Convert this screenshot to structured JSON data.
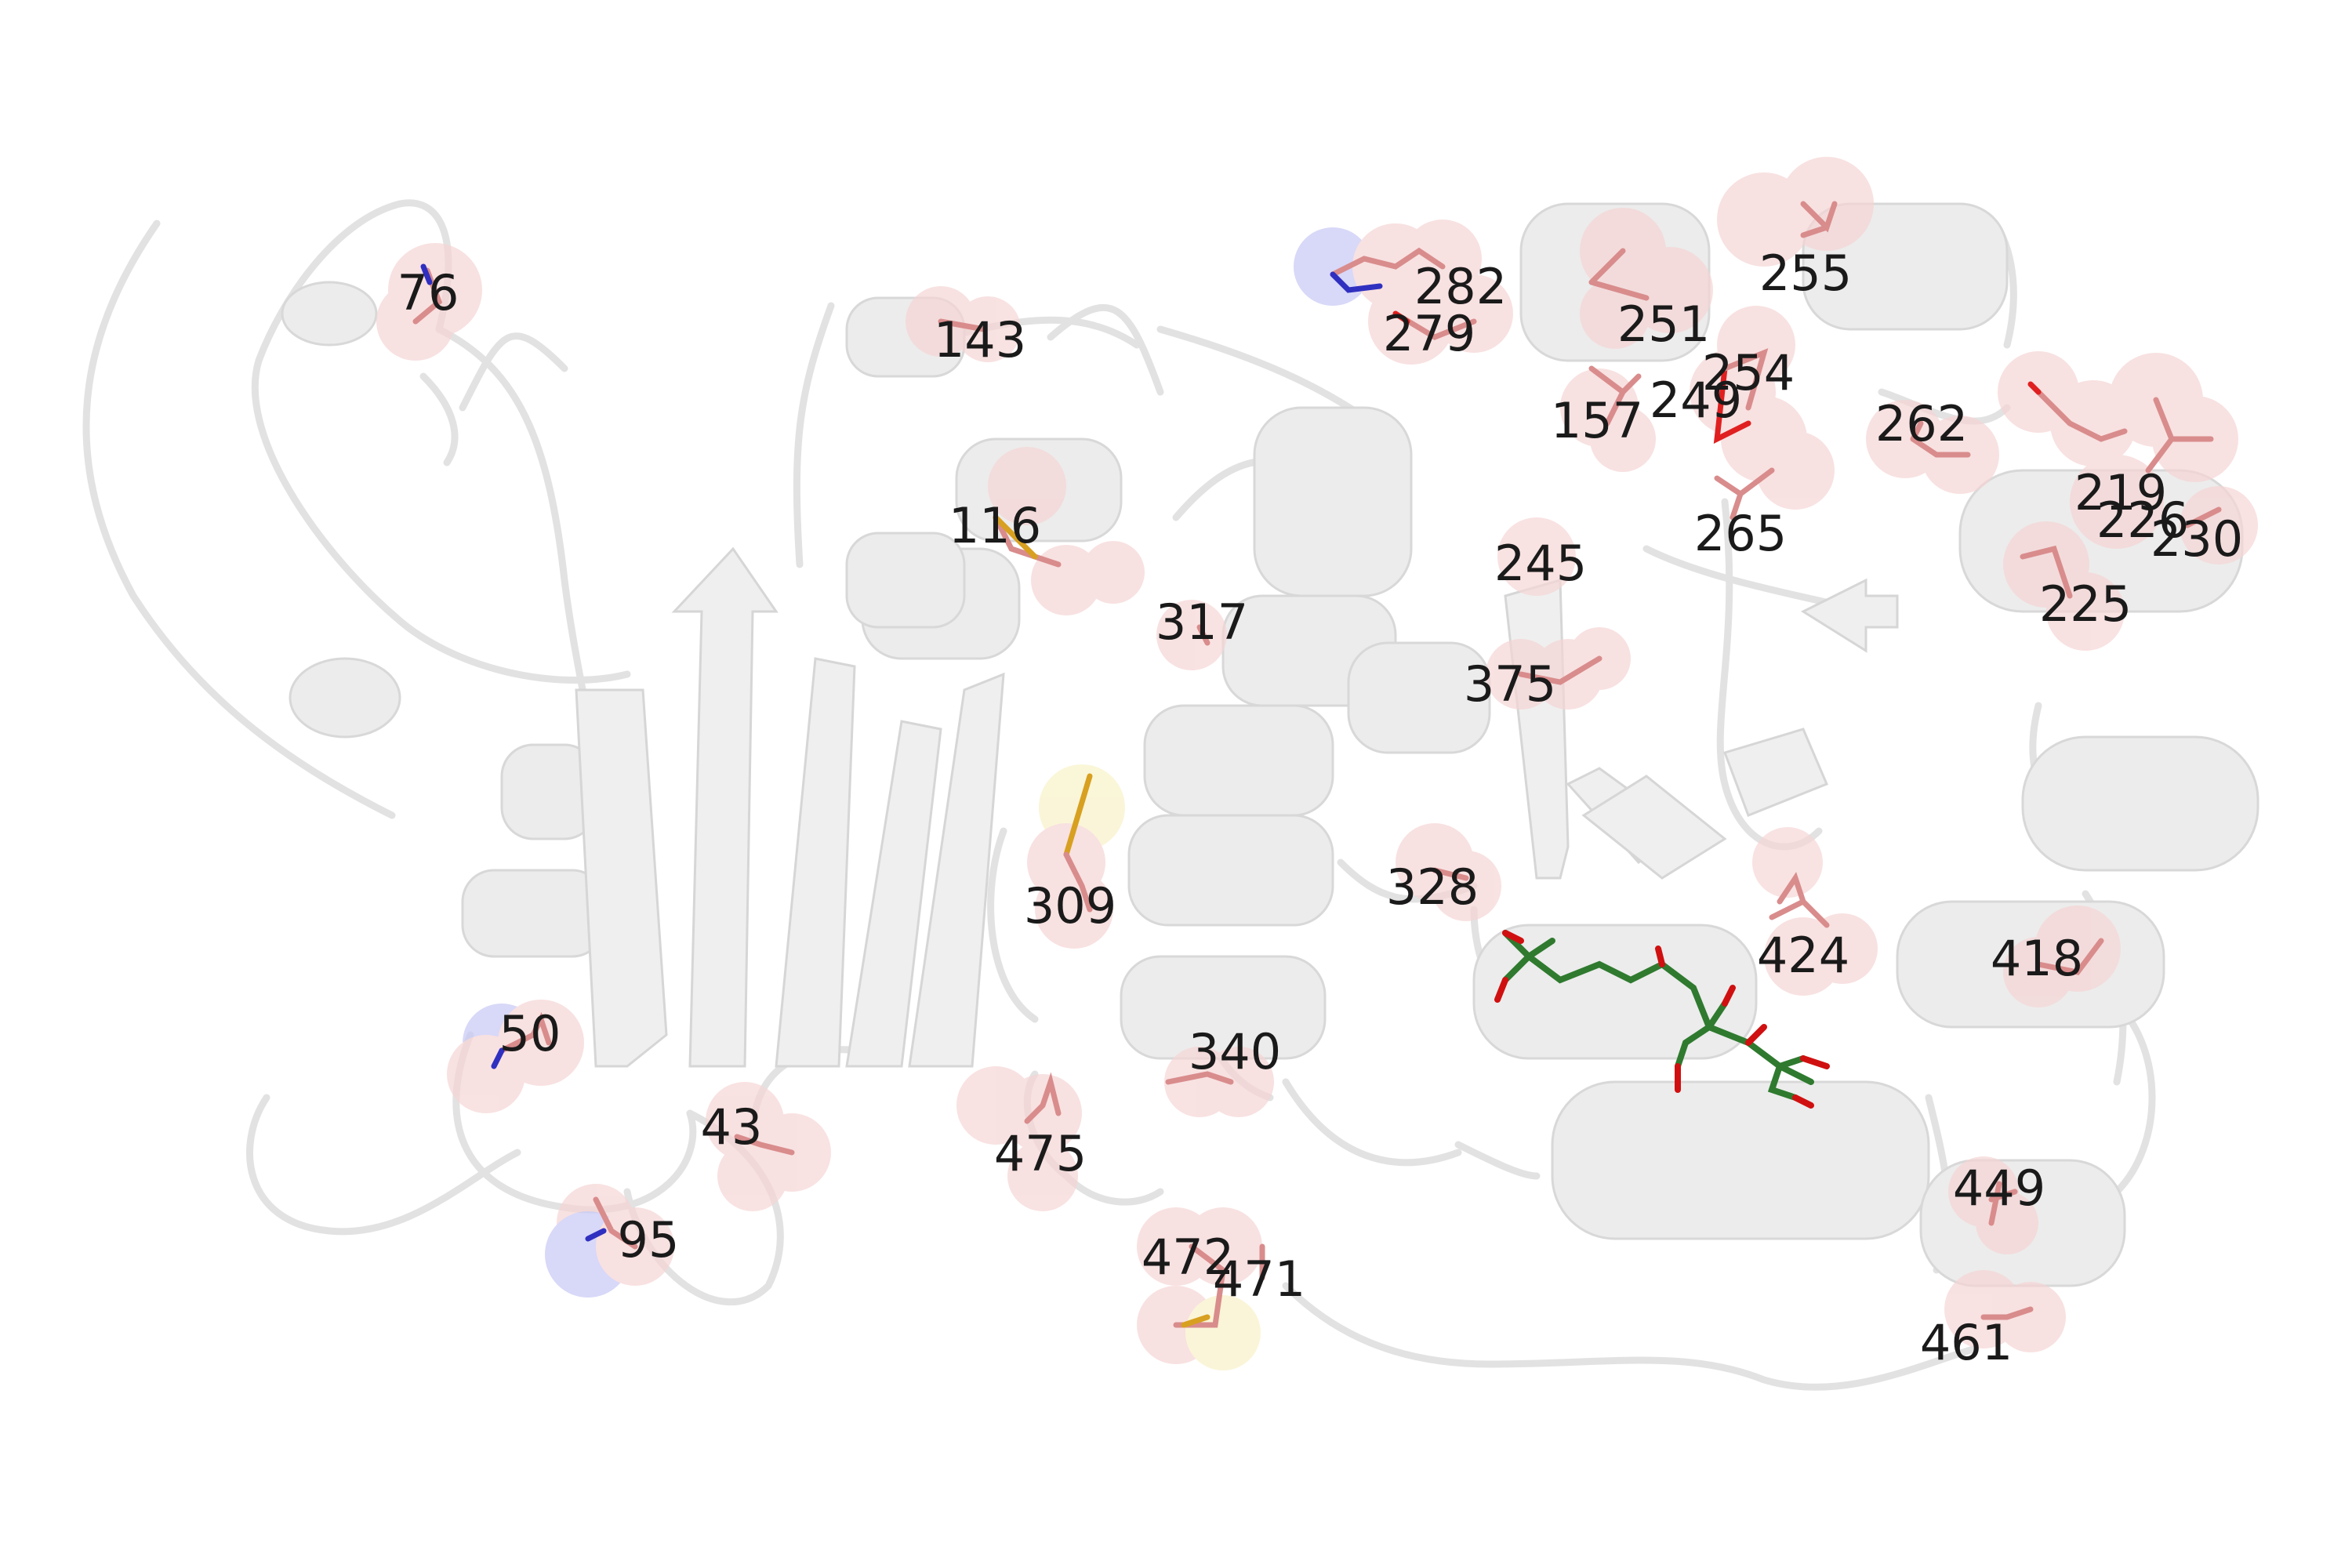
{
  "residue_labels": [
    {
      "text": "76"
    },
    {
      "text": "143"
    },
    {
      "text": "282"
    },
    {
      "text": "279"
    },
    {
      "text": "251"
    },
    {
      "text": "255"
    },
    {
      "text": "254"
    },
    {
      "text": "249"
    },
    {
      "text": "157"
    },
    {
      "text": "262"
    },
    {
      "text": "265"
    },
    {
      "text": "219"
    },
    {
      "text": "226"
    },
    {
      "text": "230"
    },
    {
      "text": "225"
    },
    {
      "text": "116"
    },
    {
      "text": "245"
    },
    {
      "text": "317"
    },
    {
      "text": "375"
    },
    {
      "text": "309"
    },
    {
      "text": "328"
    },
    {
      "text": "424"
    },
    {
      "text": "418"
    },
    {
      "text": "50"
    },
    {
      "text": "340"
    },
    {
      "text": "43"
    },
    {
      "text": "475"
    },
    {
      "text": "449"
    },
    {
      "text": "95"
    },
    {
      "text": "472"
    },
    {
      "text": "471"
    },
    {
      "text": "461"
    }
  ],
  "colors": {
    "cartoon": "#e4e4e4",
    "sphere": "#f6d5d5",
    "sphere_nitrogen": "#c8c8f6",
    "sphere_sulfur": "#f8f2c8",
    "stick_carbon": "#d98c8c",
    "stick_oxygen": "#e02020",
    "stick_nitrogen": "#3030c0",
    "stick_sulfur": "#d8a020",
    "ligand_carbon": "#2f7a2f",
    "ligand_oxygen": "#d01010"
  }
}
